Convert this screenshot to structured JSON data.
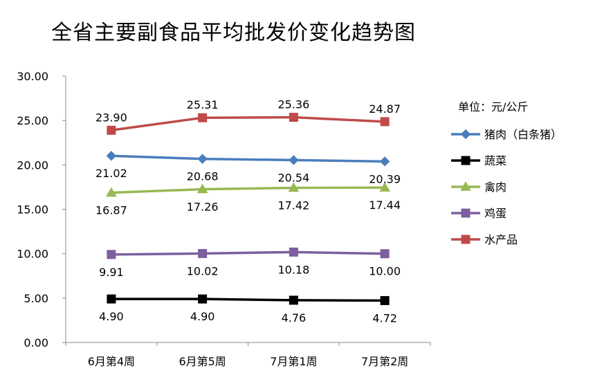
{
  "chart_data": {
    "type": "line",
    "title": "全省主要副食品平均批发价变化趋势图",
    "unit_label": "单位：元/公斤",
    "categories": [
      "6月第4周",
      "6月第5周",
      "7月第1周",
      "7月第2周"
    ],
    "ylim": [
      0,
      30
    ],
    "yticks": [
      "0.00",
      "5.00",
      "10.00",
      "15.00",
      "20.00",
      "25.00",
      "30.00"
    ],
    "grid": false,
    "legend_position": "right",
    "series": [
      {
        "name": "猪肉（白条猪）",
        "color": "#4a7ebb",
        "marker": "diamond",
        "label_pos": "below",
        "values": [
          21.02,
          20.68,
          20.54,
          20.39
        ],
        "labels": [
          "21.02",
          "20.68",
          "20.54",
          "20.39"
        ]
      },
      {
        "name": "蔬菜",
        "color": "#000000",
        "marker": "square",
        "label_pos": "below",
        "values": [
          4.9,
          4.9,
          4.76,
          4.72
        ],
        "labels": [
          "4.90",
          "4.90",
          "4.76",
          "4.72"
        ]
      },
      {
        "name": "禽肉",
        "color": "#98b954",
        "marker": "triangle",
        "label_pos": "below",
        "values": [
          16.87,
          17.26,
          17.42,
          17.44
        ],
        "labels": [
          "16.87",
          "17.26",
          "17.42",
          "17.44"
        ]
      },
      {
        "name": "鸡蛋",
        "color": "#7d5fa0",
        "marker": "square",
        "label_pos": "below",
        "values": [
          9.91,
          10.02,
          10.18,
          10.0
        ],
        "labels": [
          "9.91",
          "10.02",
          "10.18",
          "10.00"
        ]
      },
      {
        "name": "水产品",
        "color": "#be4b48",
        "marker": "square",
        "label_pos": "above",
        "values": [
          23.9,
          25.31,
          25.36,
          24.87
        ],
        "labels": [
          "23.90",
          "25.31",
          "25.36",
          "24.87"
        ]
      }
    ]
  }
}
